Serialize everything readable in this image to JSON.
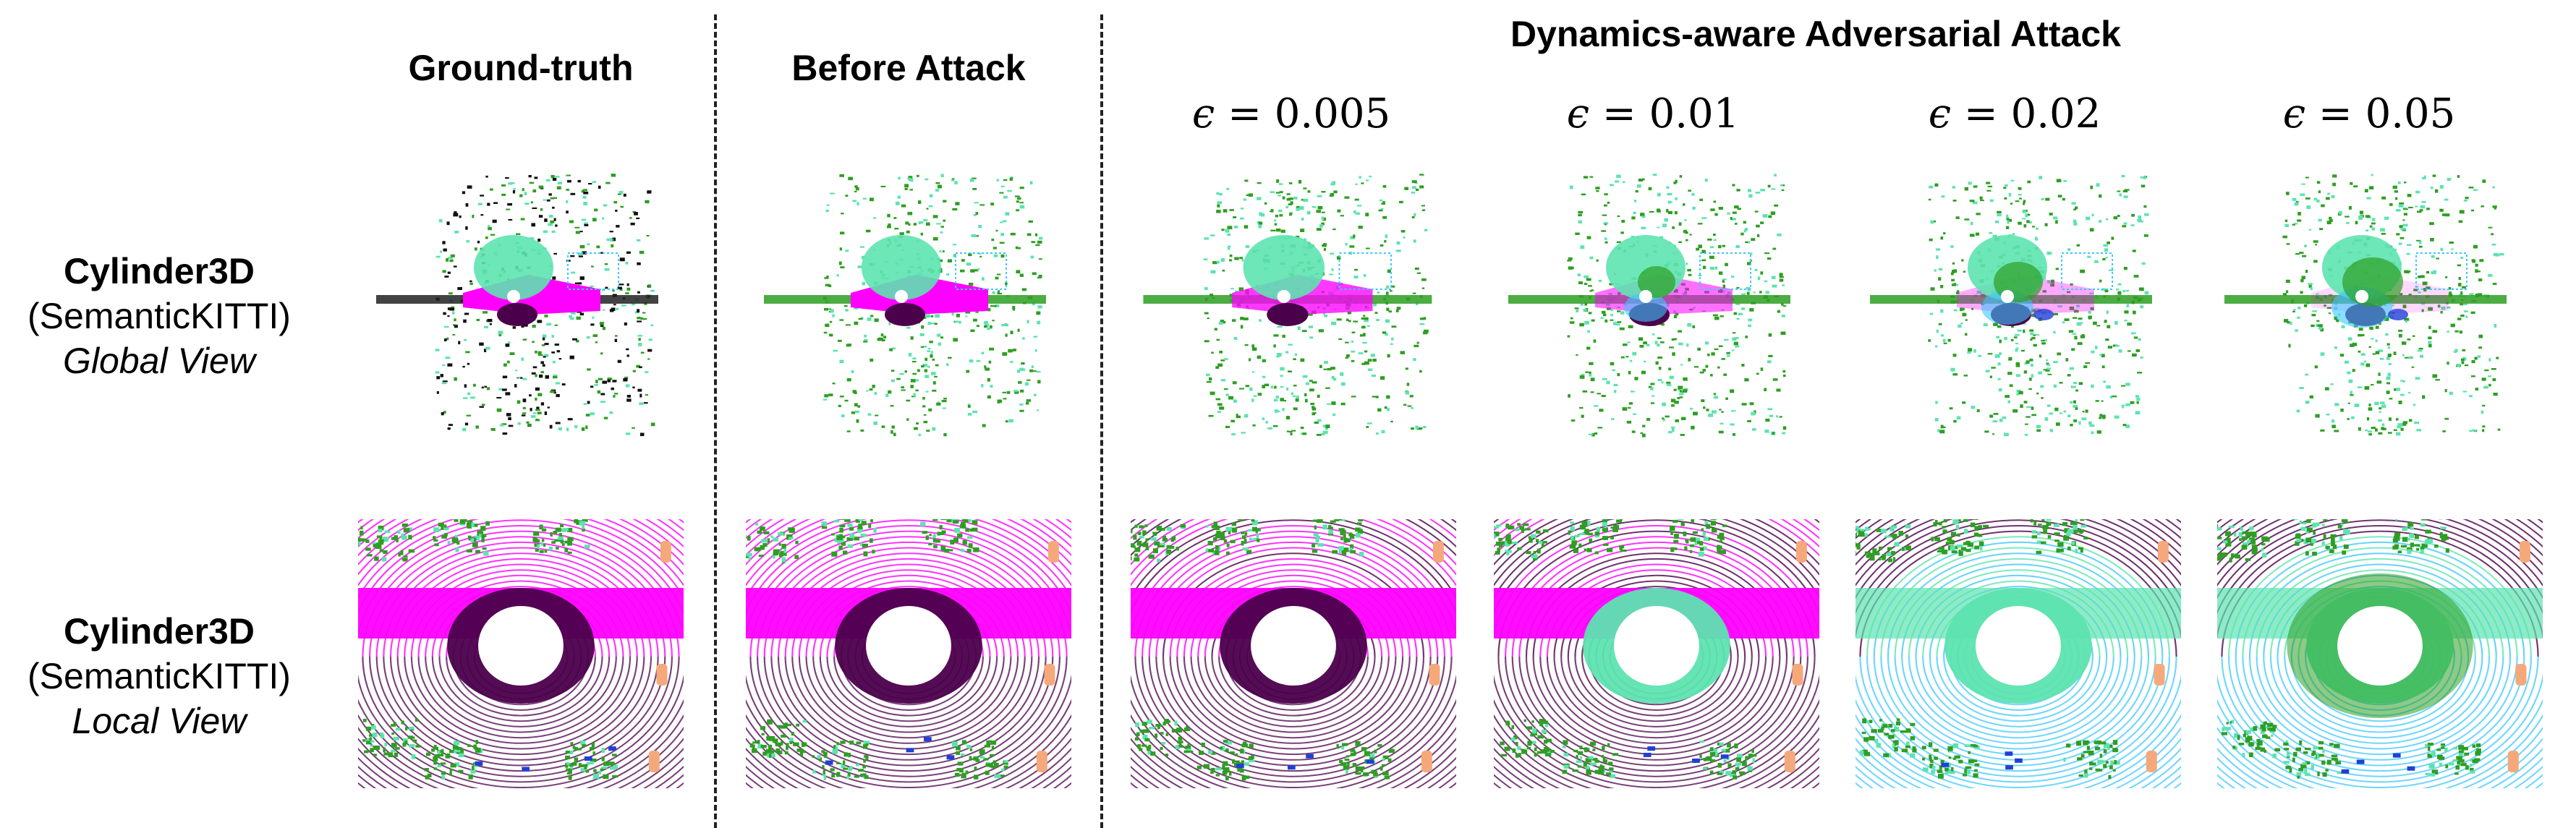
{
  "figure": {
    "column_headers": {
      "ground_truth": "Ground-truth",
      "before_attack": "Before Attack",
      "attack_group": "Dynamics-aware Adversarial Attack"
    },
    "epsilons": [
      {
        "symbol": "ϵ",
        "text": " = 0.005"
      },
      {
        "symbol": "ϵ",
        "text": " = 0.01"
      },
      {
        "symbol": "ϵ",
        "text": " = 0.02"
      },
      {
        "symbol": "ϵ",
        "text": " = 0.05"
      }
    ],
    "rows": [
      {
        "model": "Cylinder3D",
        "dataset": "(SemanticKITTI)",
        "view": "Global View"
      },
      {
        "model": "Cylinder3D",
        "dataset": "(SemanticKITTI)",
        "view": "Local View"
      }
    ]
  },
  "colors": {
    "vegetation": "#2e9e22",
    "terrain": "#5de3b0",
    "road": "#ff00ff",
    "sidewalk": "#4b004b",
    "building": "#3cc8ff",
    "car": "#1f3fd6",
    "person": "#f5a97a",
    "unlabeled": "#111111"
  }
}
